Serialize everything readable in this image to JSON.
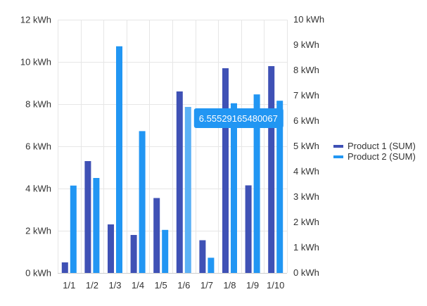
{
  "chart_data": {
    "type": "bar",
    "categories": [
      "1/1",
      "1/2",
      "1/3",
      "1/4",
      "1/5",
      "1/6",
      "1/7",
      "1/8",
      "1/9",
      "1/10"
    ],
    "series": [
      {
        "name": "Product 1 (SUM)",
        "axis": "left",
        "color": "#3f51b5",
        "values": [
          0.5,
          5.3,
          2.3,
          1.8,
          3.55,
          8.6,
          1.55,
          9.7,
          4.15,
          9.8
        ]
      },
      {
        "name": "Product 2 (SUM)",
        "axis": "right",
        "color": "#2196f3",
        "values": [
          3.45,
          3.75,
          8.95,
          5.6,
          1.7,
          6.55529165480067,
          0.6,
          6.7,
          7.05,
          6.8
        ]
      }
    ],
    "left_axis": {
      "ylim": [
        0,
        12
      ],
      "ticks": [
        0,
        2,
        4,
        6,
        8,
        10,
        12
      ],
      "tick_labels": [
        "0 kWh",
        "2 kWh",
        "4 kWh",
        "6 kWh",
        "8 kWh",
        "10 kWh",
        "12 kWh"
      ]
    },
    "right_axis": {
      "ylim": [
        0,
        10
      ],
      "ticks": [
        0,
        1,
        2,
        3,
        4,
        5,
        6,
        7,
        8,
        9,
        10
      ],
      "tick_labels": [
        "0 kWh",
        "1 kWh",
        "2 kWh",
        "3 kWh",
        "4 kWh",
        "5 kWh",
        "6 kWh",
        "7 kWh",
        "8 kWh",
        "9 kWh",
        "10 kWh"
      ]
    },
    "grid": true,
    "legend": {
      "position": "right",
      "entries": [
        "Product 1 (SUM)",
        "Product 2 (SUM)"
      ]
    },
    "tooltip": {
      "category_index": 5,
      "series_index": 1,
      "text": "6.55529165480067",
      "color": "#2196f3"
    },
    "highlight_color": "#5bb1f6"
  }
}
